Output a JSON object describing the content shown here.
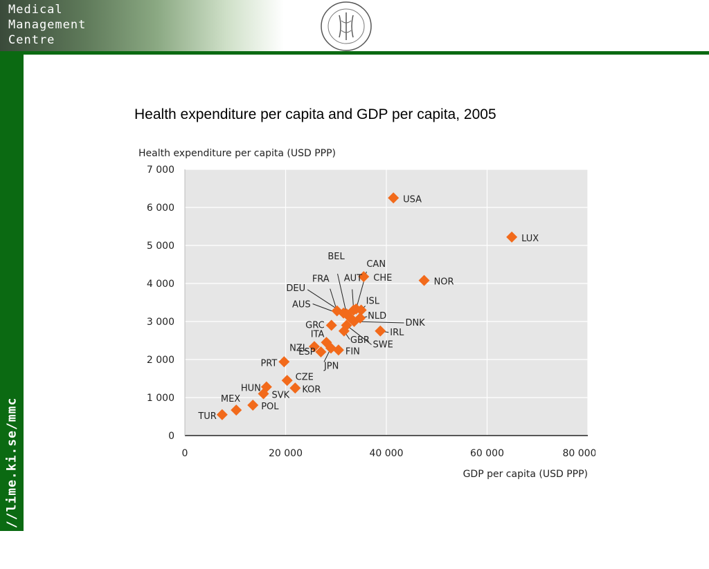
{
  "header": {
    "brand_lines": [
      "Medical",
      "Management",
      "Centre"
    ]
  },
  "sidebar": {
    "url": "http://lime.ki.se/mmc"
  },
  "slide": {
    "title": "Health expenditure per capita and GDP per capita, 2005"
  },
  "colors": {
    "green": "#0b6a12",
    "marker": "#f26a1b",
    "plot_bg": "#e6e6e6"
  },
  "chart_data": {
    "type": "scatter",
    "xlabel": "GDP per capita (USD PPP)",
    "ylabel": "Health expenditure per capita (USD PPP)",
    "xlim": [
      0,
      80000
    ],
    "ylim": [
      0,
      7000
    ],
    "x_ticks": [
      0,
      20000,
      40000,
      60000,
      80000
    ],
    "x_tick_labels": [
      "0",
      "20 000",
      "40 000",
      "60 000",
      "80 000"
    ],
    "y_ticks": [
      0,
      1000,
      2000,
      3000,
      4000,
      5000,
      6000,
      7000
    ],
    "y_tick_labels": [
      "0",
      "1 000",
      "2 000",
      "3 000",
      "4 000",
      "5 000",
      "6 000",
      "7 000"
    ],
    "grid": true,
    "points": [
      {
        "label": "USA",
        "x": 41400,
        "y": 6250
      },
      {
        "label": "LUX",
        "x": 64900,
        "y": 5220
      },
      {
        "label": "NOR",
        "x": 47500,
        "y": 4080
      },
      {
        "label": "CHE",
        "x": 35500,
        "y": 4180
      },
      {
        "label": "BEL",
        "x": 32100,
        "y": 3200
      },
      {
        "label": "AUT",
        "x": 33500,
        "y": 3300
      },
      {
        "label": "CAN",
        "x": 34000,
        "y": 3330
      },
      {
        "label": "FRA",
        "x": 30200,
        "y": 3280
      },
      {
        "label": "DEU",
        "x": 31500,
        "y": 3220
      },
      {
        "label": "ISL",
        "x": 35000,
        "y": 3300
      },
      {
        "label": "AUS",
        "x": 32800,
        "y": 3100
      },
      {
        "label": "NLD",
        "x": 34800,
        "y": 3090
      },
      {
        "label": "DNK",
        "x": 33600,
        "y": 3000
      },
      {
        "label": "GRC",
        "x": 29100,
        "y": 2900
      },
      {
        "label": "IRL",
        "x": 38800,
        "y": 2750
      },
      {
        "label": "GBR",
        "x": 31600,
        "y": 2750
      },
      {
        "label": "SWE",
        "x": 32100,
        "y": 2900
      },
      {
        "label": "ITA",
        "x": 28100,
        "y": 2450
      },
      {
        "label": "FIN",
        "x": 30500,
        "y": 2250
      },
      {
        "label": "NZL",
        "x": 25700,
        "y": 2340
      },
      {
        "label": "ESP",
        "x": 27000,
        "y": 2200
      },
      {
        "label": "JPN",
        "x": 29000,
        "y": 2300
      },
      {
        "label": "PRT",
        "x": 19700,
        "y": 1940
      },
      {
        "label": "CZE",
        "x": 20300,
        "y": 1450
      },
      {
        "label": "KOR",
        "x": 21900,
        "y": 1250
      },
      {
        "label": "HUN",
        "x": 16200,
        "y": 1280
      },
      {
        "label": "SVK",
        "x": 15600,
        "y": 1100
      },
      {
        "label": "MEX",
        "x": 10200,
        "y": 670
      },
      {
        "label": "POL",
        "x": 13500,
        "y": 800
      },
      {
        "label": "TUR",
        "x": 7400,
        "y": 550
      }
    ]
  }
}
